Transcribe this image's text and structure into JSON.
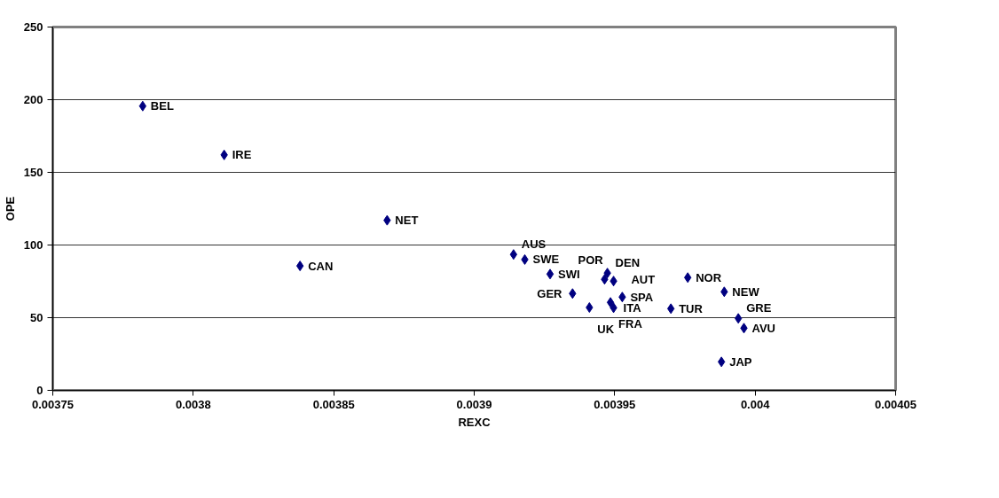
{
  "chart_data": {
    "type": "scatter",
    "xlabel": "REXC",
    "ylabel": "OPE",
    "xlim": [
      0.00375,
      0.00405
    ],
    "ylim": [
      0,
      250
    ],
    "xticks": [
      0.00375,
      0.0038,
      0.00385,
      0.0039,
      0.00395,
      0.004,
      0.00405
    ],
    "yticks": [
      0,
      50,
      100,
      150,
      200,
      250
    ],
    "grid": "y",
    "marker": "diamond",
    "series": [
      {
        "color": "#000080",
        "x": [
          0.003782,
          0.003811,
          0.003838,
          0.003869,
          0.003914,
          0.003918,
          0.003927,
          0.003935,
          0.003941,
          0.0039474,
          0.0039464,
          0.0039496,
          0.0039527,
          0.0039485,
          0.0039496,
          0.00397,
          0.003976,
          0.003989,
          0.003994,
          0.003996,
          0.003988
        ],
        "values": [
          195.6,
          162,
          85.6,
          117,
          93.5,
          90,
          80,
          66.6,
          57,
          80.7,
          76.4,
          75.2,
          64.2,
          60.5,
          56.8,
          56.2,
          77.6,
          67.8,
          49.5,
          42.8,
          19.6
        ]
      }
    ],
    "annotations": [
      {
        "text": "BEL",
        "x": 0.003782,
        "y": 195.6
      },
      {
        "text": "IRE",
        "x": 0.003811,
        "y": 162
      },
      {
        "text": "CAN",
        "x": 0.003838,
        "y": 85.6
      },
      {
        "text": "NET",
        "x": 0.003869,
        "y": 117
      },
      {
        "text": "AUS",
        "x": 0.003914,
        "y": 93.5
      },
      {
        "text": "SWE",
        "x": 0.003918,
        "y": 90
      },
      {
        "text": "SWI",
        "x": 0.003927,
        "y": 80
      },
      {
        "text": "GER",
        "x": 0.003935,
        "y": 66.6
      },
      {
        "text": "UK",
        "x": 0.003941,
        "y": 57
      },
      {
        "text": "DEN",
        "x": 0.0039474,
        "y": 80.7
      },
      {
        "text": "AUT",
        "x": 0.0039464,
        "y": 76.4
      },
      {
        "text": "POR",
        "x": 0.0039496,
        "y": 75.2
      },
      {
        "text": "SPA",
        "x": 0.0039527,
        "y": 64.2
      },
      {
        "text": "FRA",
        "x": 0.0039485,
        "y": 60.5
      },
      {
        "text": "ITA",
        "x": 0.0039496,
        "y": 56.8
      },
      {
        "text": "TUR",
        "x": 0.00397,
        "y": 56.2
      },
      {
        "text": "NOR",
        "x": 0.003976,
        "y": 77.6
      },
      {
        "text": "NEW",
        "x": 0.003989,
        "y": 67.8
      },
      {
        "text": "GRE",
        "x": 0.003994,
        "y": 49.5
      },
      {
        "text": "AVU",
        "x": 0.003996,
        "y": 42.8
      },
      {
        "text": "JAP",
        "x": 0.003988,
        "y": 19.6
      }
    ]
  }
}
